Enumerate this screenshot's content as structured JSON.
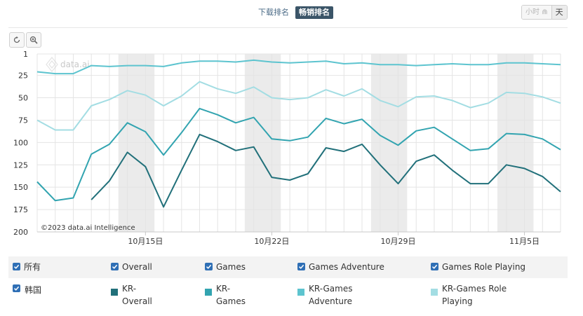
{
  "tabs": {
    "downloads": "下载排名",
    "revenue": "畅销排名"
  },
  "granularity": {
    "hour": "小时",
    "day": "天"
  },
  "toolbar": {
    "reset_icon": "reset-icon",
    "zoom_icon": "zoom-icon"
  },
  "colors": {
    "overall": "#21707a",
    "games": "#32a4b0",
    "adventure": "#5dc4cf",
    "role_playing": "#a3dde3",
    "checkbox": "#2f6fb5",
    "weekend_band": "#ebebeb"
  },
  "watermark": "data.ai",
  "copyright": "©2023 data.ai Intelligence",
  "legend": {
    "all": "所有",
    "country": "韩国",
    "metrics": [
      "Overall",
      "Games",
      "Games Adventure",
      "Games Role Playing"
    ],
    "series": [
      "KR-Overall",
      "KR-Games",
      "KR-Games Adventure",
      "KR-Games Role Playing"
    ]
  },
  "chart_data": {
    "type": "line",
    "y_axis": {
      "reversed": true,
      "range": [
        1,
        200
      ],
      "ticks": [
        1,
        25,
        50,
        75,
        100,
        125,
        150,
        175,
        200
      ]
    },
    "x_axis": {
      "range": [
        "2023-10-09",
        "2023-11-07"
      ],
      "tick_labels": [
        "10月15日",
        "10月22日",
        "10月29日",
        "11月5日"
      ],
      "tick_dates": [
        "2023-10-15",
        "2023-10-22",
        "2023-10-29",
        "2023-11-05"
      ]
    },
    "weekend_bands": [
      [
        "2023-10-14",
        "2023-10-15"
      ],
      [
        "2023-10-21",
        "2023-10-22"
      ],
      [
        "2023-10-28",
        "2023-10-29"
      ],
      [
        "2023-11-04",
        "2023-11-05"
      ]
    ],
    "x": [
      "2023-10-09",
      "2023-10-10",
      "2023-10-11",
      "2023-10-12",
      "2023-10-13",
      "2023-10-14",
      "2023-10-15",
      "2023-10-16",
      "2023-10-17",
      "2023-10-18",
      "2023-10-19",
      "2023-10-20",
      "2023-10-21",
      "2023-10-22",
      "2023-10-23",
      "2023-10-24",
      "2023-10-25",
      "2023-10-26",
      "2023-10-27",
      "2023-10-28",
      "2023-10-29",
      "2023-10-30",
      "2023-10-31",
      "2023-11-01",
      "2023-11-02",
      "2023-11-03",
      "2023-11-04",
      "2023-11-05",
      "2023-11-06",
      "2023-11-07"
    ],
    "series": [
      {
        "name": "KR-Overall",
        "values": [
          null,
          null,
          null,
          164,
          143,
          111,
          127,
          172,
          131,
          91,
          99,
          109,
          105,
          139,
          142,
          135,
          106,
          110,
          102,
          125,
          146,
          121,
          114,
          131,
          146,
          146,
          125,
          129,
          138,
          155
        ]
      },
      {
        "name": "KR-Games",
        "values": [
          144,
          165,
          162,
          113,
          102,
          78,
          88,
          114,
          89,
          62,
          69,
          78,
          72,
          96,
          98,
          94,
          73,
          79,
          74,
          92,
          103,
          87,
          83,
          96,
          109,
          107,
          90,
          91,
          96,
          108
        ]
      },
      {
        "name": "KR-Games Adventure",
        "values": [
          21,
          23,
          23,
          14,
          15,
          14,
          14,
          15,
          11,
          9,
          9,
          10,
          8,
          10,
          11,
          10,
          9,
          12,
          11,
          13,
          13,
          14,
          13,
          12,
          13,
          13,
          11,
          11,
          12,
          13
        ]
      },
      {
        "name": "KR-Games Role Playing",
        "values": [
          75,
          86,
          86,
          59,
          52,
          42,
          47,
          59,
          48,
          32,
          40,
          45,
          38,
          50,
          52,
          50,
          41,
          48,
          40,
          53,
          60,
          49,
          48,
          53,
          61,
          56,
          44,
          45,
          49,
          56
        ]
      }
    ]
  }
}
